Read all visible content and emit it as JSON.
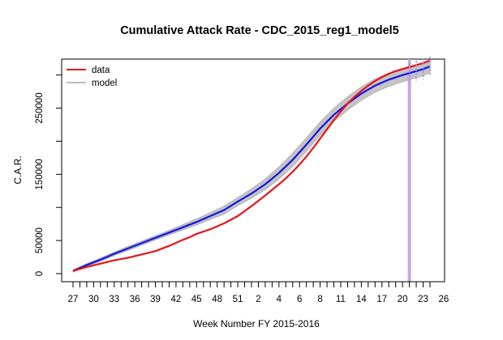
{
  "chart_data": {
    "type": "line",
    "title": "Cumulative Attack Rate - CDC_2015_reg1_model5",
    "xlabel": "Week Number FY 2015-2016",
    "ylabel": "C.A.R.",
    "x_tick_labels": [
      "27",
      "30",
      "33",
      "36",
      "39",
      "42",
      "45",
      "48",
      "51",
      "2",
      "4",
      "6",
      "8",
      "11",
      "14",
      "17",
      "20",
      "23",
      "26"
    ],
    "x_index_range": [
      0,
      52
    ],
    "ylim": [
      0,
      340000
    ],
    "y_ticks": [
      0,
      50000,
      100000,
      150000,
      200000,
      250000,
      300000
    ],
    "y_tick_labels": [
      "0",
      "50000",
      "",
      "150000",
      "",
      "250000",
      ""
    ],
    "legend": {
      "position": "top-left",
      "entries": [
        {
          "name": "data",
          "color": "#e8141a"
        },
        {
          "name": "model",
          "color": "#bdbdbd"
        }
      ]
    },
    "vertical_marker": {
      "x_index": 49,
      "color": "#c8a8d8"
    },
    "series": [
      {
        "name": "data",
        "color": "#e8141a",
        "x": [
          0,
          2,
          4,
          6,
          8,
          10,
          12,
          14,
          16,
          17,
          18,
          20,
          22,
          24,
          26,
          28,
          30,
          31,
          32,
          33,
          34,
          35,
          36,
          37,
          38,
          39,
          40,
          41,
          42,
          43,
          44,
          45,
          46,
          47,
          48,
          49,
          50,
          51,
          52
        ],
        "values": [
          4000,
          10000,
          15000,
          20000,
          24000,
          29000,
          34000,
          42000,
          51000,
          55000,
          60000,
          67000,
          76000,
          87000,
          102000,
          118000,
          135000,
          144000,
          154000,
          165000,
          177000,
          190000,
          204000,
          218000,
          232000,
          245000,
          257000,
          267000,
          276000,
          284000,
          291000,
          297000,
          302000,
          306000,
          309000,
          312000,
          315000,
          318000,
          322000
        ]
      },
      {
        "name": "model_mean",
        "color": "#1313e6",
        "x": [
          0,
          2,
          4,
          6,
          8,
          10,
          12,
          14,
          16,
          18,
          20,
          22,
          24,
          26,
          28,
          30,
          32,
          34,
          36,
          38,
          40,
          42,
          44,
          46,
          48,
          49,
          50,
          51,
          52
        ],
        "values": [
          4000,
          13000,
          21000,
          30000,
          38000,
          46000,
          54000,
          62000,
          70000,
          78000,
          87000,
          96000,
          109000,
          121000,
          135000,
          152000,
          172000,
          195000,
          219000,
          240000,
          257000,
          272000,
          284000,
          293000,
          300000,
          303000,
          306000,
          309000,
          313000
        ]
      }
    ],
    "model_band": {
      "x": [
        0,
        2,
        4,
        6,
        8,
        10,
        12,
        14,
        16,
        18,
        20,
        22,
        24,
        26,
        28,
        30,
        32,
        34,
        36,
        38,
        40,
        42,
        44,
        46,
        48,
        49,
        50,
        51,
        52
      ],
      "upper": [
        5500,
        15000,
        23500,
        32500,
        41000,
        49000,
        57000,
        65500,
        74000,
        82500,
        92000,
        102000,
        115000,
        128000,
        143000,
        161000,
        182000,
        205000,
        229000,
        250000,
        267000,
        282000,
        294000,
        303000,
        310000,
        313000,
        316000,
        319000,
        322000
      ],
      "lower": [
        2500,
        11000,
        18500,
        27500,
        35000,
        43000,
        51000,
        58500,
        66000,
        73500,
        82000,
        90000,
        103000,
        114000,
        127000,
        143000,
        162000,
        185000,
        209000,
        230000,
        247000,
        262000,
        274000,
        283000,
        290000,
        293000,
        296000,
        299000,
        304000
      ]
    },
    "grid": false
  }
}
